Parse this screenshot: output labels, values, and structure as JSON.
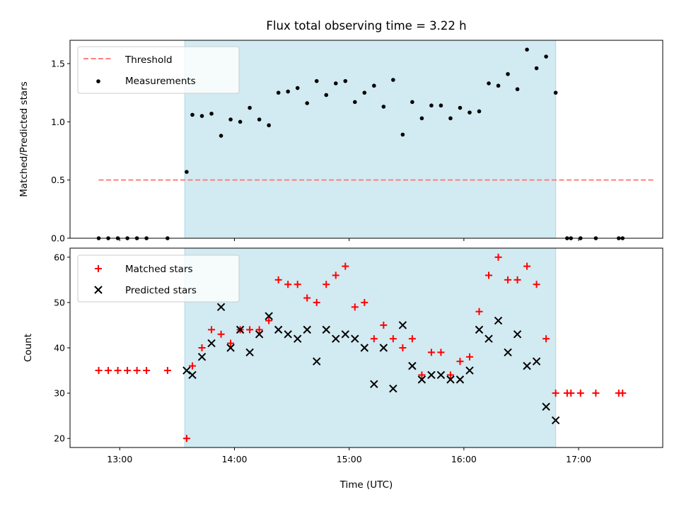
{
  "colors": {
    "threshold": "#ff7f7f",
    "measurement": "#000000",
    "matched": "#ff0000",
    "predicted": "#000000",
    "shade": "#add8e6"
  },
  "chart_data": [
    {
      "type": "scatter",
      "title": "Flux total observing time = 3.22 h",
      "xlabel": "",
      "ylabel": "Matched/Predicted stars",
      "xlim": [
        "12:34",
        "17:44"
      ],
      "ylim": [
        0,
        1.7
      ],
      "yticks": [
        0.0,
        0.5,
        1.0,
        1.5
      ],
      "ytick_labels": [
        "0.0",
        "0.5",
        "1.0",
        "1.5"
      ],
      "shaded_region": [
        "13:34",
        "16:48"
      ],
      "legend": {
        "location": "upper left",
        "entries": [
          "Threshold",
          "Measurements"
        ]
      },
      "series": [
        {
          "name": "Threshold",
          "kind": "line",
          "style": "dashed",
          "x": [
            "12:49",
            "17:39"
          ],
          "y": [
            0.5,
            0.5
          ]
        },
        {
          "name": "Measurements",
          "kind": "scatter",
          "x": [
            "12:49",
            "12:54",
            "12:59",
            "13:04",
            "13:09",
            "13:14",
            "13:25",
            "13:35",
            "13:38",
            "13:43",
            "13:48",
            "13:53",
            "13:58",
            "14:03",
            "14:08",
            "14:13",
            "14:18",
            "14:23",
            "14:28",
            "14:33",
            "14:38",
            "14:43",
            "14:48",
            "14:53",
            "14:58",
            "15:03",
            "15:08",
            "15:13",
            "15:18",
            "15:23",
            "15:28",
            "15:33",
            "15:38",
            "15:43",
            "15:48",
            "15:53",
            "15:58",
            "16:03",
            "16:08",
            "16:13",
            "16:18",
            "16:23",
            "16:28",
            "16:33",
            "16:38",
            "16:43",
            "16:48",
            "16:54",
            "16:56",
            "17:01",
            "17:09",
            "17:21",
            "17:23"
          ],
          "y": [
            0,
            0,
            0,
            0,
            0,
            0,
            0,
            0.57,
            1.06,
            1.05,
            1.07,
            0.88,
            1.02,
            1.0,
            1.12,
            1.02,
            0.97,
            1.25,
            1.26,
            1.29,
            1.16,
            1.35,
            1.23,
            1.33,
            1.35,
            1.17,
            1.25,
            1.31,
            1.13,
            1.36,
            0.89,
            1.17,
            1.03,
            1.14,
            1.14,
            1.03,
            1.12,
            1.08,
            1.09,
            1.33,
            1.31,
            1.41,
            1.28,
            1.62,
            1.46,
            1.56,
            1.25,
            0,
            0,
            0,
            0,
            0,
            0
          ]
        }
      ]
    },
    {
      "type": "scatter",
      "title": "",
      "xlabel": "Time (UTC)",
      "ylabel": "Count",
      "xlim": [
        "12:34",
        "17:44"
      ],
      "ylim": [
        18,
        62
      ],
      "yticks": [
        20,
        30,
        40,
        50,
        60
      ],
      "ytick_labels": [
        "20",
        "30",
        "40",
        "50",
        "60"
      ],
      "xticks": [
        "13:00",
        "14:00",
        "15:00",
        "16:00",
        "17:00"
      ],
      "xtick_labels": [
        "13:00",
        "14:00",
        "15:00",
        "16:00",
        "17:00"
      ],
      "shaded_region": [
        "13:34",
        "16:48"
      ],
      "legend": {
        "location": "upper left",
        "entries": [
          "Matched stars",
          "Predicted stars"
        ]
      },
      "series": [
        {
          "name": "Matched stars",
          "marker": "+",
          "x": [
            "12:49",
            "12:54",
            "12:59",
            "13:04",
            "13:09",
            "13:14",
            "13:25",
            "13:35",
            "13:38",
            "13:43",
            "13:48",
            "13:53",
            "13:58",
            "14:03",
            "14:08",
            "14:13",
            "14:18",
            "14:23",
            "14:28",
            "14:33",
            "14:38",
            "14:43",
            "14:48",
            "14:53",
            "14:58",
            "15:03",
            "15:08",
            "15:13",
            "15:18",
            "15:23",
            "15:28",
            "15:33",
            "15:38",
            "15:43",
            "15:48",
            "15:53",
            "15:58",
            "16:03",
            "16:08",
            "16:13",
            "16:18",
            "16:23",
            "16:28",
            "16:33",
            "16:38",
            "16:43",
            "16:48",
            "16:54",
            "16:56",
            "17:01",
            "17:09",
            "17:21",
            "17:23"
          ],
          "y": [
            35,
            35,
            35,
            35,
            35,
            35,
            35,
            20,
            36,
            40,
            44,
            43,
            41,
            44,
            44,
            44,
            46,
            55,
            54,
            54,
            51,
            50,
            54,
            56,
            58,
            49,
            50,
            42,
            45,
            42,
            40,
            42,
            34,
            39,
            39,
            34,
            37,
            38,
            48,
            56,
            60,
            55,
            55,
            58,
            54,
            42,
            30,
            30,
            30,
            30,
            30,
            30,
            30
          ]
        },
        {
          "name": "Predicted stars",
          "marker": "x",
          "x": [
            "13:35",
            "13:38",
            "13:43",
            "13:48",
            "13:53",
            "13:58",
            "14:03",
            "14:08",
            "14:13",
            "14:18",
            "14:23",
            "14:28",
            "14:33",
            "14:38",
            "14:43",
            "14:48",
            "14:53",
            "14:58",
            "15:03",
            "15:08",
            "15:13",
            "15:18",
            "15:23",
            "15:28",
            "15:33",
            "15:38",
            "15:43",
            "15:48",
            "15:53",
            "15:58",
            "16:03",
            "16:08",
            "16:13",
            "16:18",
            "16:23",
            "16:28",
            "16:33",
            "16:38",
            "16:43",
            "16:48"
          ],
          "y": [
            35,
            34,
            38,
            41,
            49,
            40,
            44,
            39,
            43,
            47,
            44,
            43,
            42,
            44,
            37,
            44,
            42,
            43,
            42,
            40,
            32,
            40,
            31,
            45,
            36,
            33,
            34,
            34,
            33,
            33,
            35,
            44,
            42,
            46,
            39,
            43,
            36,
            37,
            27,
            24
          ]
        }
      ]
    }
  ]
}
